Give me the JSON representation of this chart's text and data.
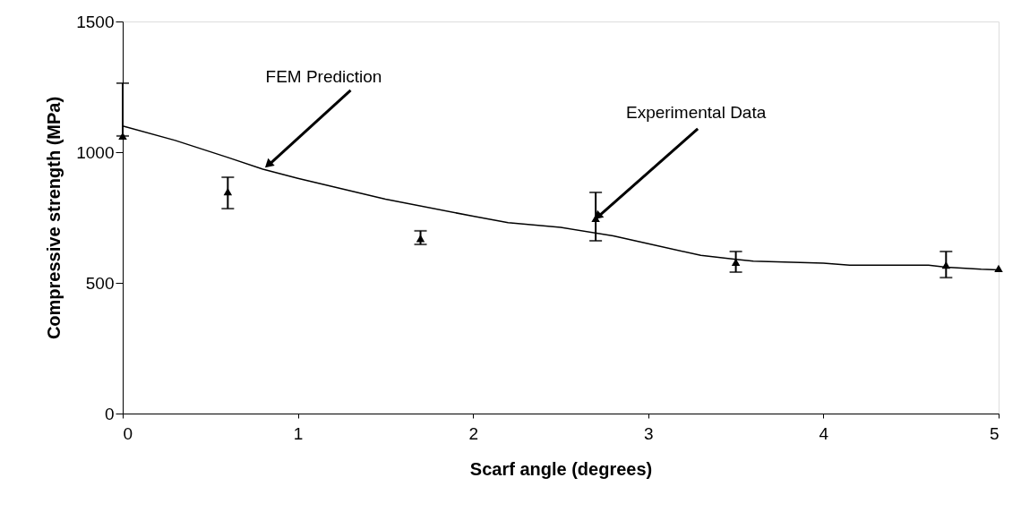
{
  "chart_data": {
    "type": "line",
    "xlabel": "Scarf angle (degrees)",
    "ylabel": "Compressive strength (MPa)",
    "xlim": [
      0,
      5
    ],
    "xticks": [
      0,
      1,
      2,
      3,
      4,
      5
    ],
    "ylim": [
      0,
      1500
    ],
    "yticks": [
      0,
      500,
      1000,
      1500
    ],
    "grid": false,
    "series": [
      {
        "color": "#000000",
        "marker": "none",
        "line_style": "solid",
        "x": [
          0,
          0.3,
          0.6,
          0.8,
          1.0,
          1.5,
          2.0,
          2.2,
          2.5,
          2.8,
          3.0,
          3.3,
          3.5,
          3.6,
          4.0,
          4.15,
          4.5,
          4.6,
          4.7,
          4.9,
          5.0
        ],
        "values": [
          1100,
          1045,
          980,
          935,
          900,
          820,
          755,
          730,
          712,
          680,
          650,
          605,
          590,
          583,
          575,
          568,
          568,
          568,
          560,
          552,
          550
        ]
      },
      {
        "type": "scatter",
        "color": "#000000",
        "marker": "triangle",
        "x": [
          0,
          0.6,
          1.7,
          2.7,
          3.5,
          4.7,
          5.0
        ],
        "values": [
          1062,
          849,
          670,
          747,
          579,
          568,
          555
        ],
        "errors": [
          [
            1062,
            1264
          ],
          [
            784,
            904
          ],
          [
            647,
            699
          ],
          [
            661,
            846
          ],
          [
            541,
            620
          ],
          [
            520,
            620
          ],
          null
        ]
      }
    ],
    "annotations": [
      {
        "text": "FEM Prediction",
        "x": 0.8,
        "y": 935
      },
      {
        "text": "Experimental Data",
        "x": 2.7,
        "y": 747
      }
    ]
  }
}
